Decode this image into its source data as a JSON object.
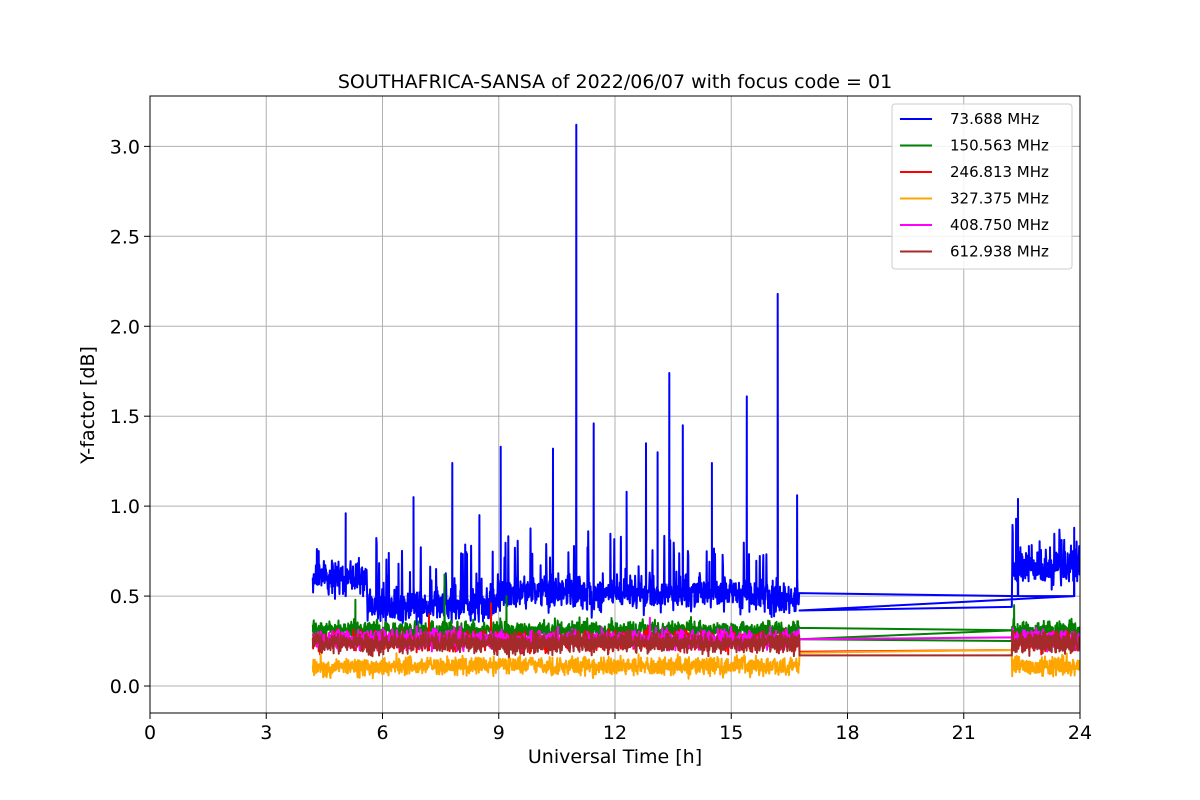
{
  "chart_data": {
    "type": "line",
    "title": "SOUTHAFRICA-SANSA of 2022/06/07 with focus code = 01",
    "xlabel": "Universal Time [h]",
    "ylabel": "Y-factor [dB]",
    "xlim": [
      0,
      24
    ],
    "ylim": [
      -0.15,
      3.28
    ],
    "x_ticks": [
      0,
      3,
      6,
      9,
      12,
      15,
      18,
      21,
      24
    ],
    "x_tick_labels": [
      "0",
      "3",
      "6",
      "9",
      "12",
      "15",
      "18",
      "21",
      "24"
    ],
    "y_ticks": [
      0.0,
      0.5,
      1.0,
      1.5,
      2.0,
      2.5,
      3.0
    ],
    "y_tick_labels": [
      "0.0",
      "0.5",
      "1.0",
      "1.5",
      "2.0",
      "2.5",
      "3.0"
    ],
    "grid": true,
    "legend_position": "top-right",
    "segments": [
      [
        4.2,
        16.75
      ],
      [
        22.25,
        24.0
      ]
    ],
    "series": [
      {
        "name": " 73.688 MHz",
        "color": "#0000ff",
        "base": 0.5,
        "noise": 0.09,
        "start_end": [
          [
            4.25,
            0.7
          ],
          [
            4.3,
            0.6
          ]
        ],
        "gap_levels": [
          0.42,
          0.44
        ],
        "spikes": [
          [
            11.0,
            3.12
          ],
          [
            16.2,
            2.18
          ],
          [
            13.4,
            1.74
          ],
          [
            15.4,
            1.61
          ],
          [
            11.45,
            1.46
          ],
          [
            13.75,
            1.45
          ],
          [
            9.05,
            1.33
          ],
          [
            10.4,
            1.32
          ],
          [
            7.8,
            1.24
          ],
          [
            14.5,
            1.24
          ],
          [
            12.8,
            1.35
          ],
          [
            13.1,
            1.3
          ],
          [
            6.8,
            1.05
          ],
          [
            5.05,
            0.96
          ],
          [
            16.7,
            1.06
          ],
          [
            22.4,
            1.04
          ],
          [
            23.85,
            0.88
          ],
          [
            8.5,
            0.95
          ],
          [
            12.3,
            1.08
          ]
        ]
      },
      {
        "name": "150.563 MHz",
        "color": "#008000",
        "base": 0.31,
        "noise": 0.05,
        "start_end": [
          [
            4.25,
            0.3
          ],
          [
            4.3,
            0.33
          ]
        ],
        "gap_levels": [
          0.26,
          0.25
        ],
        "spikes": [
          [
            7.6,
            0.62
          ],
          [
            5.3,
            0.48
          ],
          [
            9.2,
            0.5
          ],
          [
            22.3,
            0.45
          ]
        ]
      },
      {
        "name": "246.813 MHz",
        "color": "#ff0000",
        "base": 0.25,
        "noise": 0.05,
        "start_end": [
          [
            4.25,
            0.2
          ],
          [
            4.3,
            0.26
          ]
        ],
        "gap_levels": [
          0.19,
          0.2
        ],
        "spikes": [
          [
            8.8,
            0.46
          ],
          [
            7.2,
            0.4
          ]
        ]
      },
      {
        "name": "327.375 MHz",
        "color": "#ffa500",
        "base": 0.11,
        "noise": 0.05,
        "start_end": [
          [
            4.25,
            0.1
          ],
          [
            4.3,
            0.12
          ]
        ],
        "gap_levels": [
          0.185,
          0.2
        ],
        "spikes": []
      },
      {
        "name": "408.750 MHz",
        "color": "#ff00ff",
        "base": 0.26,
        "noise": 0.05,
        "start_end": [
          [
            4.25,
            0.22
          ],
          [
            4.3,
            0.24
          ]
        ],
        "gap_levels": [
          0.26,
          0.27
        ],
        "spikes": [
          [
            12.9,
            0.38
          ]
        ]
      },
      {
        "name": "612.938 MHz",
        "color": "#a52a2a",
        "base": 0.24,
        "noise": 0.055,
        "start_end": [
          [
            4.25,
            0.27
          ],
          [
            4.3,
            0.26
          ]
        ],
        "gap_levels": [
          0.17,
          0.17
        ],
        "spikes": []
      }
    ]
  }
}
